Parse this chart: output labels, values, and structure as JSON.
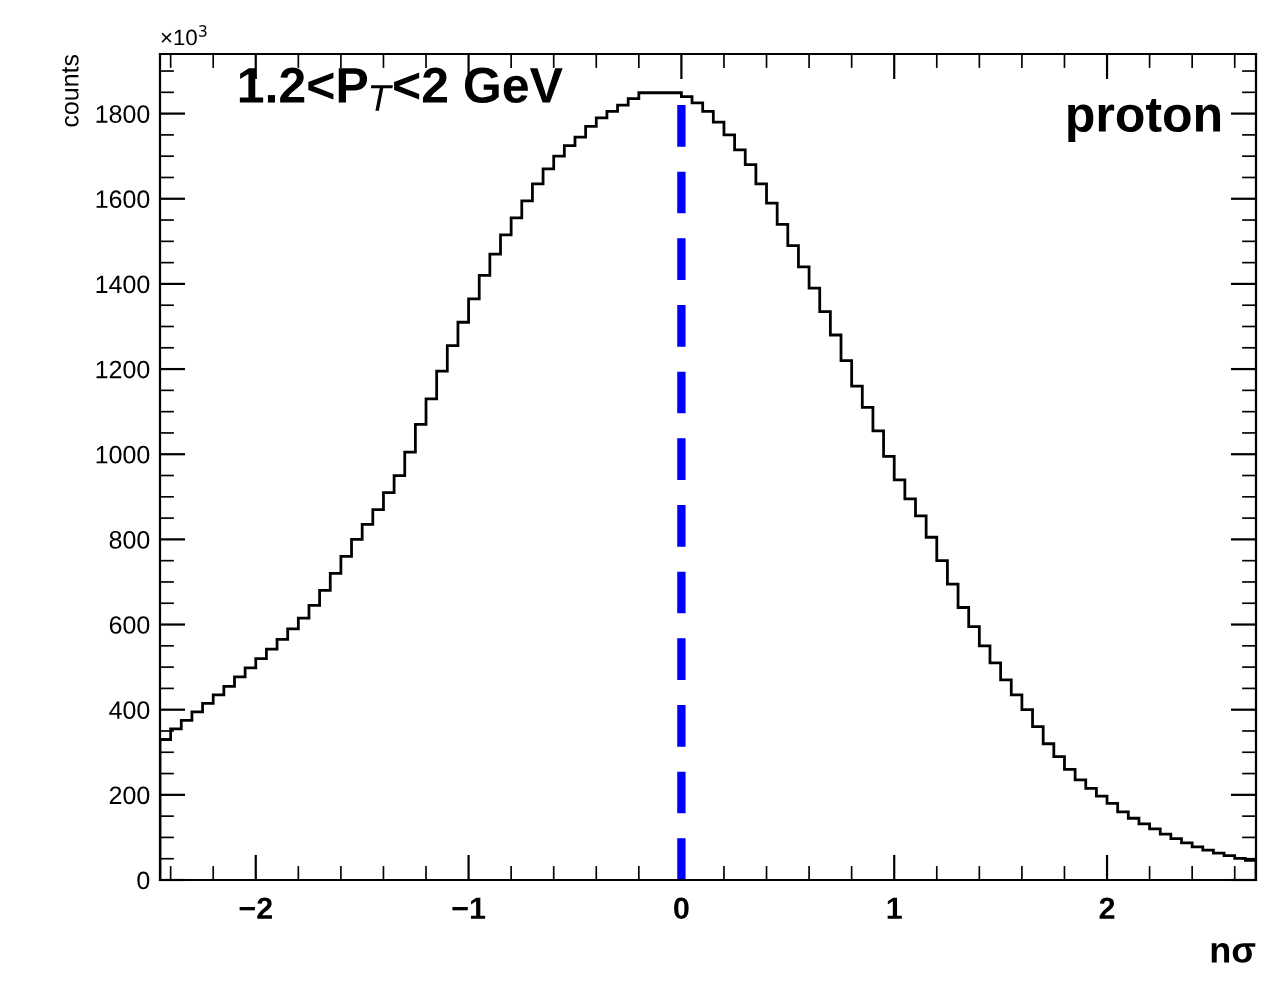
{
  "chart_data": {
    "type": "histogram",
    "xlabel": "nσ",
    "ylabel": "counts",
    "annotations": [
      "×10$^{3}$",
      "1.2<P$_{T}$<2 GeV",
      "proton"
    ],
    "bins": [
      -2.45,
      -2.4,
      -2.35,
      -2.3,
      -2.25,
      -2.2,
      -2.15,
      -2.1,
      -2.05,
      -2.0,
      -1.95,
      -1.9,
      -1.85,
      -1.8,
      -1.75,
      -1.7,
      -1.65,
      -1.6,
      -1.55,
      -1.5,
      -1.45,
      -1.4,
      -1.35,
      -1.3,
      -1.25,
      -1.2,
      -1.15,
      -1.1,
      -1.05,
      -1.0,
      -0.95,
      -0.9,
      -0.85,
      -0.8,
      -0.75,
      -0.7,
      -0.65,
      -0.6,
      -0.55,
      -0.5,
      -0.45,
      -0.4,
      -0.35,
      -0.3,
      -0.25,
      -0.2,
      -0.15,
      -0.1,
      -0.05,
      0.0,
      0.05,
      0.1,
      0.15,
      0.2,
      0.25,
      0.3,
      0.35,
      0.4,
      0.45,
      0.5,
      0.55,
      0.6,
      0.65,
      0.7,
      0.75,
      0.8,
      0.85,
      0.9,
      0.95,
      1.0,
      1.05,
      1.1,
      1.15,
      1.2,
      1.25,
      1.3,
      1.35,
      1.4,
      1.45,
      1.5,
      1.55,
      1.6,
      1.65,
      1.7,
      1.75,
      1.8,
      1.85,
      1.9,
      1.95,
      2.0,
      2.05,
      2.1,
      2.15,
      2.2,
      2.25,
      2.3,
      2.35,
      2.4,
      2.45,
      2.5,
      2.55,
      2.6,
      2.65,
      2.7
    ],
    "values": [
      330,
      355,
      375,
      395,
      415,
      435,
      455,
      477,
      498,
      520,
      542,
      565,
      590,
      615,
      645,
      680,
      720,
      760,
      800,
      835,
      870,
      910,
      950,
      1005,
      1070,
      1130,
      1195,
      1255,
      1310,
      1365,
      1420,
      1470,
      1515,
      1555,
      1595,
      1635,
      1670,
      1700,
      1725,
      1745,
      1770,
      1790,
      1805,
      1820,
      1835,
      1849,
      1849,
      1849,
      1849,
      1840,
      1825,
      1805,
      1780,
      1750,
      1715,
      1680,
      1635,
      1590,
      1540,
      1490,
      1440,
      1390,
      1335,
      1280,
      1220,
      1160,
      1110,
      1055,
      995,
      940,
      895,
      855,
      805,
      750,
      695,
      640,
      595,
      550,
      510,
      470,
      435,
      400,
      360,
      320,
      290,
      260,
      235,
      215,
      197,
      180,
      160,
      145,
      132,
      120,
      108,
      97,
      87,
      78,
      70,
      63,
      57,
      51,
      46
    ],
    "color": "#000000",
    "xlim": [
      -2.45,
      2.7
    ],
    "ylim": [
      0,
      1940
    ],
    "xticks": [
      {
        "value": -2,
        "label": "−2"
      },
      {
        "value": -1,
        "label": "−1"
      },
      0,
      1,
      2
    ],
    "yticks": [
      0,
      200,
      400,
      600,
      800,
      1000,
      1200,
      1400,
      1600,
      1800
    ],
    "ref_lines": [
      {
        "axis": "x",
        "value": 0,
        "color": "#0000ff",
        "line_style": "dashed"
      }
    ],
    "grid": false,
    "legend": false
  }
}
